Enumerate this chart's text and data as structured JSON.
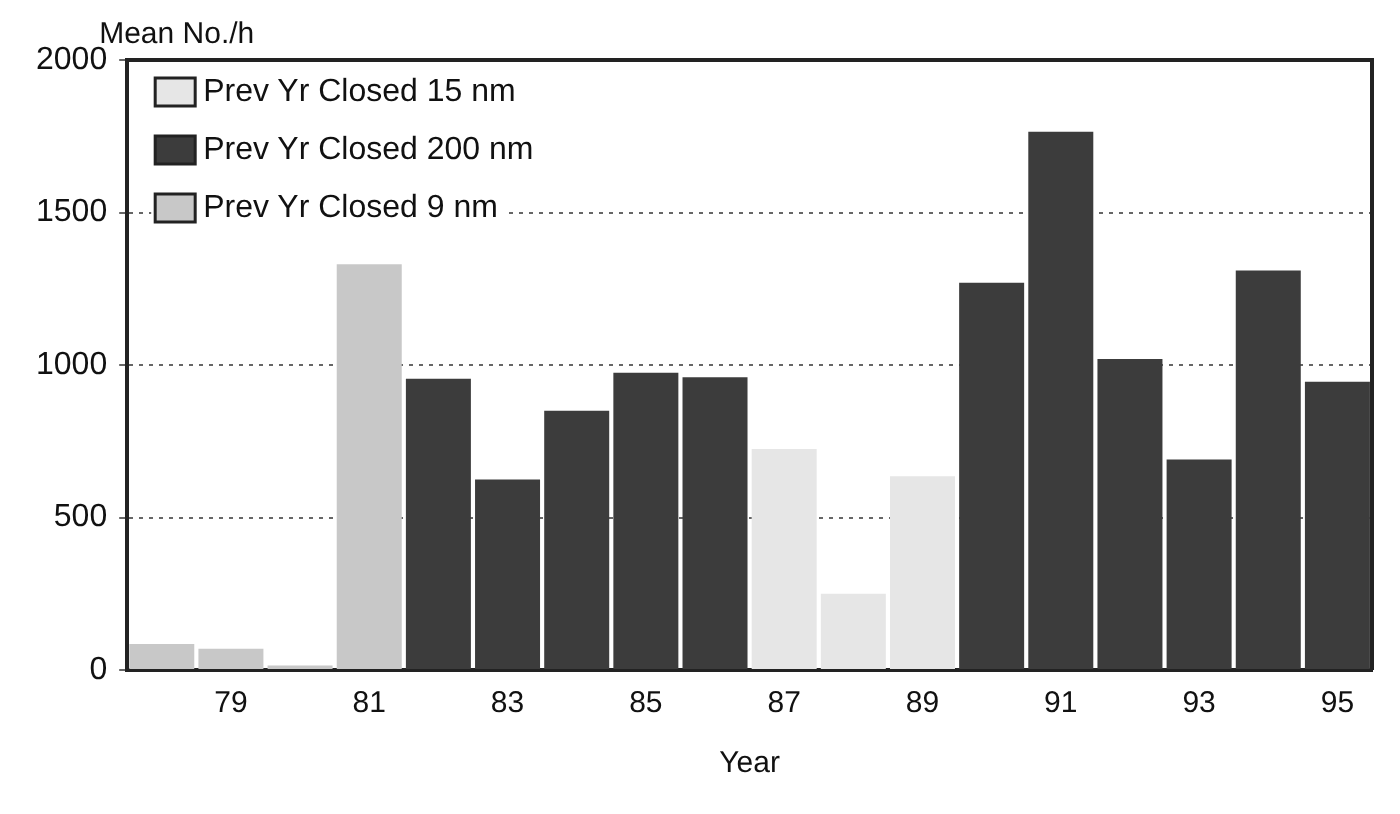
{
  "chart_data": {
    "type": "bar",
    "ylabel": "Mean No./h",
    "xlabel": "Year",
    "categories": [
      null,
      "79",
      null,
      "81",
      null,
      "83",
      null,
      "85",
      null,
      "87",
      null,
      "89",
      null,
      "91",
      null,
      "93",
      null,
      "95"
    ],
    "series": [
      {
        "name": "Prev Yr Closed 15 nm",
        "color": "#e6e6e6",
        "values": [
          null,
          null,
          null,
          null,
          null,
          null,
          null,
          null,
          null,
          725,
          250,
          635,
          null,
          null,
          null,
          null,
          null,
          null
        ]
      },
      {
        "name": "Prev Yr Closed 200 nm",
        "color": "#3c3c3c",
        "values": [
          null,
          null,
          null,
          null,
          955,
          625,
          850,
          975,
          960,
          null,
          null,
          null,
          1270,
          1765,
          1020,
          690,
          1310,
          945
        ]
      },
      {
        "name": "Prev Yr Closed 9 nm",
        "color": "#c8c8c8",
        "values": [
          85,
          70,
          15,
          1330,
          null,
          null,
          null,
          null,
          null,
          null,
          null,
          null,
          null,
          null,
          null,
          null,
          null,
          null
        ]
      }
    ],
    "ylim": [
      0,
      2000
    ],
    "yticks": [
      0,
      500,
      1000,
      1500,
      2000
    ],
    "grid": "y",
    "line_style": "dotted",
    "legend": "top left"
  }
}
